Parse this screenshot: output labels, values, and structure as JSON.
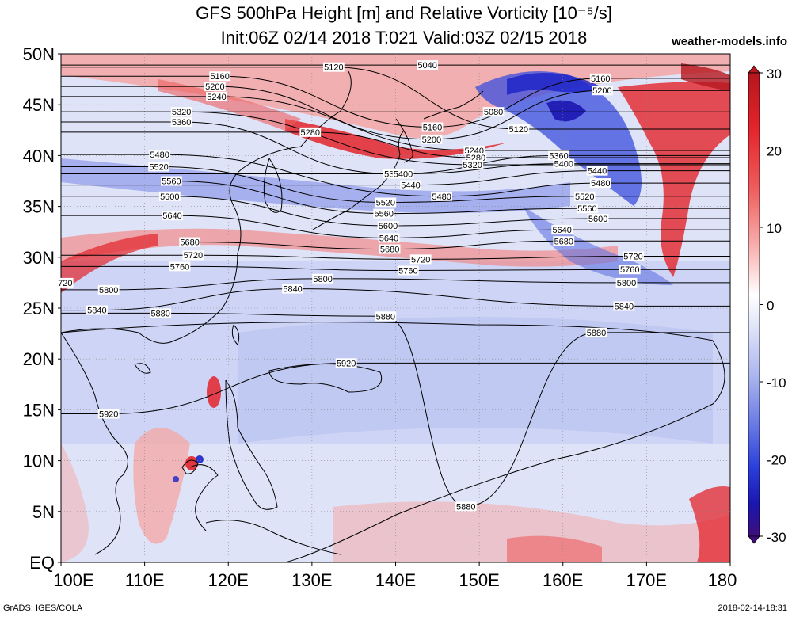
{
  "header": {
    "title_line1": "GFS 500hPa Height [m] and Relative Vorticity [10⁻⁵/s]",
    "title_line2": "Init:06Z 02/14 2018 T:021 Valid:03Z 02/15 2018",
    "site": "weather-models.info"
  },
  "footer": {
    "left": "GrADS: IGES/COLA",
    "right": "2018-02-14-18:31"
  },
  "map": {
    "lat_labels": [
      "50N",
      "45N",
      "40N",
      "35N",
      "30N",
      "25N",
      "20N",
      "15N",
      "10N",
      "5N",
      "EQ"
    ],
    "lon_labels": [
      "100E",
      "110E",
      "120E",
      "130E",
      "140E",
      "150E",
      "160E",
      "170E",
      "180"
    ],
    "contour_labels": [
      {
        "t": "5120",
        "lon": 132.6,
        "lat": 48.7
      },
      {
        "t": "5040",
        "lon": 143.8,
        "lat": 48.9
      },
      {
        "t": "5160",
        "lon": 119.0,
        "lat": 47.8
      },
      {
        "t": "5200",
        "lon": 118.4,
        "lat": 46.8
      },
      {
        "t": "5240",
        "lon": 118.6,
        "lat": 45.8
      },
      {
        "t": "5320",
        "lon": 114.4,
        "lat": 44.3
      },
      {
        "t": "5360",
        "lon": 114.4,
        "lat": 43.3
      },
      {
        "t": "5280",
        "lon": 129.8,
        "lat": 42.3
      },
      {
        "t": "5160",
        "lon": 164.5,
        "lat": 47.6
      },
      {
        "t": "5200",
        "lon": 164.7,
        "lat": 46.4
      },
      {
        "t": "5080",
        "lon": 151.7,
        "lat": 44.3
      },
      {
        "t": "5120",
        "lon": 154.7,
        "lat": 42.6
      },
      {
        "t": "5160",
        "lon": 144.4,
        "lat": 42.8
      },
      {
        "t": "5200",
        "lon": 144.3,
        "lat": 41.6
      },
      {
        "t": "5240",
        "lon": 149.4,
        "lat": 40.5
      },
      {
        "t": "5280",
        "lon": 149.6,
        "lat": 39.8
      },
      {
        "t": "5320",
        "lon": 149.2,
        "lat": 39.1
      },
      {
        "t": "5360",
        "lon": 159.5,
        "lat": 40.0
      },
      {
        "t": "5400",
        "lon": 160.1,
        "lat": 39.2
      },
      {
        "t": "5440",
        "lon": 164.1,
        "lat": 38.5
      },
      {
        "t": "5480",
        "lon": 164.5,
        "lat": 37.3
      },
      {
        "t": "5480",
        "lon": 111.8,
        "lat": 40.1
      },
      {
        "t": "5520",
        "lon": 111.7,
        "lat": 38.9
      },
      {
        "t": "5560",
        "lon": 113.2,
        "lat": 37.5
      },
      {
        "t": "5600",
        "lon": 113.0,
        "lat": 36.0
      },
      {
        "t": "5640",
        "lon": 113.3,
        "lat": 34.1
      },
      {
        "t": "5360",
        "lon": 139.8,
        "lat": 38.2
      },
      {
        "t": "5400",
        "lon": 140.9,
        "lat": 38.2
      },
      {
        "t": "5440",
        "lon": 141.8,
        "lat": 37.1
      },
      {
        "t": "5480",
        "lon": 145.5,
        "lat": 36.0
      },
      {
        "t": "5520",
        "lon": 138.8,
        "lat": 35.4
      },
      {
        "t": "5560",
        "lon": 138.6,
        "lat": 34.3
      },
      {
        "t": "5600",
        "lon": 139.1,
        "lat": 33.1
      },
      {
        "t": "5640",
        "lon": 139.2,
        "lat": 31.9
      },
      {
        "t": "5680",
        "lon": 139.3,
        "lat": 30.8
      },
      {
        "t": "5720",
        "lon": 143.0,
        "lat": 29.8
      },
      {
        "t": "5760",
        "lon": 141.5,
        "lat": 28.7
      },
      {
        "t": "5520",
        "lon": 162.6,
        "lat": 36.0
      },
      {
        "t": "5560",
        "lon": 162.9,
        "lat": 34.8
      },
      {
        "t": "5600",
        "lon": 164.2,
        "lat": 33.8
      },
      {
        "t": "5640",
        "lon": 159.9,
        "lat": 32.7
      },
      {
        "t": "5680",
        "lon": 160.1,
        "lat": 31.6
      },
      {
        "t": "5720",
        "lon": 168.4,
        "lat": 30.1
      },
      {
        "t": "5760",
        "lon": 168.0,
        "lat": 28.8
      },
      {
        "t": "5800",
        "lon": 167.6,
        "lat": 27.5
      },
      {
        "t": "5680",
        "lon": 115.4,
        "lat": 31.5
      },
      {
        "t": "5720",
        "lon": 115.8,
        "lat": 30.2
      },
      {
        "t": "5760",
        "lon": 114.2,
        "lat": 29.1
      },
      {
        "t": "5800",
        "lon": 131.3,
        "lat": 27.9
      },
      {
        "t": "5840",
        "lon": 127.7,
        "lat": 26.9
      },
      {
        "t": "5800",
        "lon": 105.7,
        "lat": 26.8
      },
      {
        "t": "5840",
        "lon": 104.3,
        "lat": 24.8
      },
      {
        "t": "5880",
        "lon": 111.9,
        "lat": 24.5
      },
      {
        "t": "5880",
        "lon": 138.8,
        "lat": 24.2
      },
      {
        "t": "5880",
        "lon": 164.0,
        "lat": 22.6
      },
      {
        "t": "5840",
        "lon": 167.3,
        "lat": 25.2
      },
      {
        "t": "5920",
        "lon": 134.1,
        "lat": 19.6
      },
      {
        "t": "5920",
        "lon": 105.7,
        "lat": 14.6
      },
      {
        "t": "5880",
        "lon": 148.4,
        "lat": 5.5
      },
      {
        "t": "720",
        "lon": 100.5,
        "lat": 27.5
      }
    ],
    "colorbar": {
      "ticks": [
        "30",
        "20",
        "10",
        "0",
        "-10",
        "-20",
        "-30"
      ],
      "colors": [
        "#b5161d",
        "#e3242b",
        "#ef5d5d",
        "#f79b9b",
        "#fbd3d3",
        "#ffffff",
        "#d6dcf6",
        "#a8b2ee",
        "#7383e6",
        "#3a4ddd",
        "#1a22c8",
        "#2b179b",
        "#3d0f7c"
      ]
    }
  }
}
